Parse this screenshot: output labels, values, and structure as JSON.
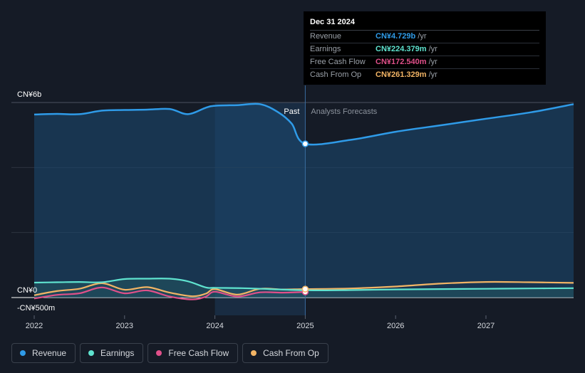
{
  "tooltip": {
    "date": "Dec 31 2024",
    "rows": [
      {
        "label": "Revenue",
        "value": "CN¥4.729b",
        "unit": "/yr",
        "color": "#2f9be8"
      },
      {
        "label": "Earnings",
        "value": "CN¥224.379m",
        "unit": "/yr",
        "color": "#5fe3cf"
      },
      {
        "label": "Free Cash Flow",
        "value": "CN¥172.540m",
        "unit": "/yr",
        "color": "#e0508a"
      },
      {
        "label": "Cash From Op",
        "value": "CN¥261.329m",
        "unit": "/yr",
        "color": "#f2b465"
      }
    ]
  },
  "regions": {
    "past": "Past",
    "forecast": "Analysts Forecasts"
  },
  "legend": [
    {
      "name": "Revenue",
      "color": "#2f9be8",
      "icon": "revenue-dot-icon"
    },
    {
      "name": "Earnings",
      "color": "#5fe3cf",
      "icon": "earnings-dot-icon"
    },
    {
      "name": "Free Cash Flow",
      "color": "#e0508a",
      "icon": "free-cash-flow-dot-icon"
    },
    {
      "name": "Cash From Op",
      "color": "#f2b465",
      "icon": "cash-from-op-dot-icon"
    }
  ],
  "chart_data": {
    "type": "area",
    "title": "",
    "currency_unit": "CN¥ millions",
    "y_tick_labels": [
      {
        "value": 6000,
        "label": "CN¥6b"
      },
      {
        "value": 0,
        "label": "CN¥0"
      },
      {
        "value": -500,
        "label": "-CN¥500m"
      }
    ],
    "ylim": [
      -500,
      6000
    ],
    "xlim": [
      2022.0,
      2027.97
    ],
    "x_ticks": [
      2022,
      2023,
      2024,
      2025,
      2026,
      2027
    ],
    "x_tick_labels": [
      "2022",
      "2023",
      "2024",
      "2025",
      "2026",
      "2027"
    ],
    "grid": true,
    "past_end": 2025.0,
    "highlight_start": 2024.0,
    "highlight_end": 2025.0,
    "series": [
      {
        "name": "Revenue",
        "color": "#2f9be8",
        "x": [
          2022.0,
          2022.25,
          2022.5,
          2022.75,
          2023.0,
          2023.25,
          2023.5,
          2023.7,
          2023.9,
          2024.0,
          2024.25,
          2024.5,
          2024.7,
          2024.85,
          2025.0,
          2025.5,
          2026.0,
          2026.5,
          2027.0,
          2027.5,
          2027.97
        ],
        "y": [
          5630,
          5650,
          5640,
          5750,
          5770,
          5780,
          5800,
          5640,
          5840,
          5900,
          5920,
          5950,
          5700,
          5350,
          4729,
          4850,
          5100,
          5300,
          5500,
          5700,
          5950
        ]
      },
      {
        "name": "Earnings",
        "color": "#5fe3cf",
        "x": [
          2022.0,
          2022.25,
          2022.5,
          2022.75,
          2023.0,
          2023.25,
          2023.5,
          2023.7,
          2023.9,
          2024.0,
          2024.3,
          2024.6,
          2025.0,
          2025.5,
          2026.0,
          2026.5,
          2027.0,
          2027.5,
          2027.97
        ],
        "y": [
          460,
          470,
          480,
          470,
          570,
          580,
          580,
          500,
          310,
          300,
          290,
          260,
          224,
          230,
          250,
          260,
          270,
          280,
          290
        ]
      },
      {
        "name": "Free Cash Flow",
        "color": "#e0508a",
        "x": [
          2022.0,
          2022.25,
          2022.5,
          2022.75,
          2023.0,
          2023.25,
          2023.5,
          2023.75,
          2023.9,
          2024.0,
          2024.25,
          2024.5,
          2024.75,
          2025.0
        ],
        "y": [
          -30,
          80,
          130,
          310,
          130,
          220,
          30,
          -60,
          30,
          180,
          30,
          160,
          150,
          173
        ]
      },
      {
        "name": "Cash From Op",
        "color": "#f2b465",
        "x": [
          2022.0,
          2022.25,
          2022.5,
          2022.75,
          2023.0,
          2023.25,
          2023.5,
          2023.75,
          2023.9,
          2024.0,
          2024.25,
          2024.5,
          2024.75,
          2025.0,
          2025.5,
          2026.0,
          2026.5,
          2027.0,
          2027.5,
          2027.97
        ],
        "y": [
          70,
          200,
          270,
          440,
          240,
          320,
          150,
          40,
          120,
          260,
          90,
          270,
          250,
          261,
          280,
          340,
          430,
          480,
          470,
          450
        ]
      }
    ]
  }
}
